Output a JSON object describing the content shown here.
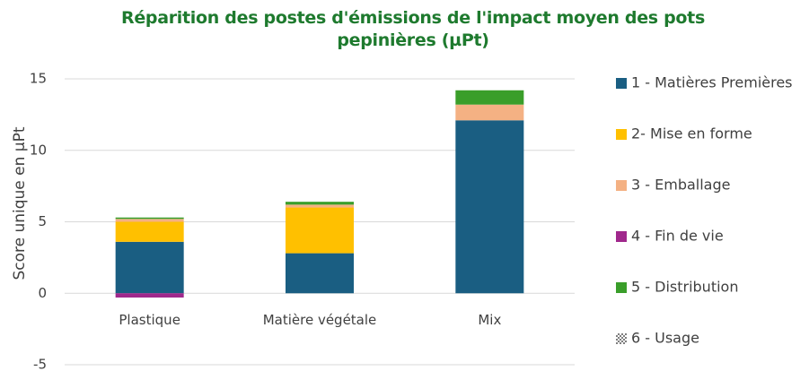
{
  "chart_data": {
    "type": "stacked_bar",
    "title": "Réparition des postes d'émissions de l'impact moyen des pots pepinières (µPt)",
    "y_label": "Score unique en µPt",
    "categories": [
      "Plastique",
      "Matière végétale",
      "Mix"
    ],
    "series": [
      {
        "name": "1 - Matières Premières",
        "color": "#1a5e82",
        "values": [
          3.6,
          2.8,
          12.1
        ]
      },
      {
        "name": "2- Mise en forme",
        "color": "#ffc000",
        "values": [
          1.4,
          3.2,
          0
        ]
      },
      {
        "name": "3 - Emballage",
        "color": "#f4b183",
        "values": [
          0.2,
          0.2,
          1.1
        ]
      },
      {
        "name": "4 - Fin de vie",
        "color": "#a0288c",
        "values": [
          -0.3,
          0,
          0
        ]
      },
      {
        "name": "5 - Distribution",
        "color": "#3a9e2a",
        "values": [
          0.1,
          0.2,
          1.0
        ]
      },
      {
        "name": "6 - Usage",
        "color": "#7f7f7f",
        "pattern": "checker",
        "values": [
          0,
          0,
          0
        ]
      }
    ],
    "ylim": [
      -5,
      15
    ],
    "yticks": [
      -5,
      0,
      5,
      10,
      15
    ],
    "grid": true,
    "legend": "right"
  }
}
